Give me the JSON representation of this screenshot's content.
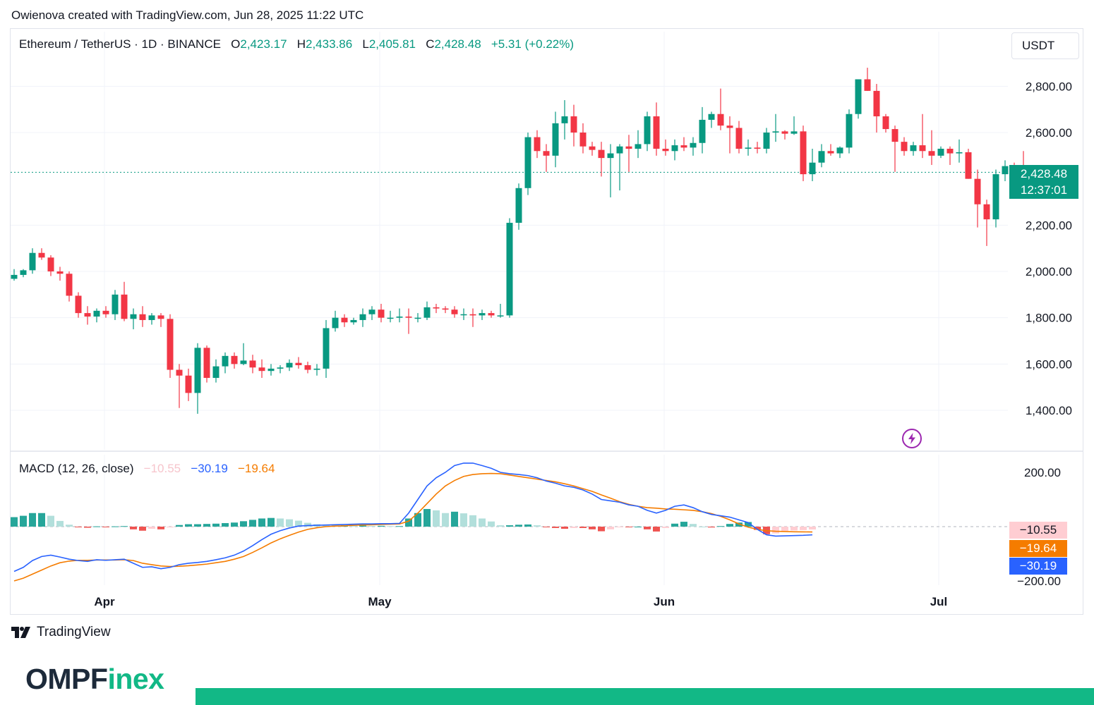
{
  "header": {
    "credit": "Owienova created with TradingView.com, Jun 28, 2025 11:22 UTC"
  },
  "legend": {
    "symbol": "Ethereum / TetherUS · 1D · BINANCE",
    "o_label": "O",
    "o_value": "2,423.17",
    "h_label": "H",
    "h_value": "2,433.86",
    "l_label": "L",
    "l_value": "2,405.81",
    "c_label": "C",
    "c_value": "2,428.48",
    "change": "+5.31 (+0.22%)"
  },
  "currency": "USDT",
  "last_price": {
    "price": "2,428.48",
    "countdown": "12:37:01"
  },
  "macd_legend": {
    "label": "MACD (12, 26, close)",
    "histogram": "−10.55",
    "macd": "−30.19",
    "signal": "−19.64"
  },
  "macd_tags": {
    "histogram": "−10.55",
    "signal": "−19.64",
    "macd": "−30.19"
  },
  "footer": {
    "brand": "TradingView",
    "logo_main": "OMPF",
    "logo_accent": "inex"
  },
  "colors": {
    "up": "#089981",
    "down": "#f23645",
    "macd": "#2962ff",
    "signal": "#f57c00",
    "hist_pos": "#26a69a",
    "hist_neg": "#ef5350",
    "brand": "#12b886"
  },
  "chart_data": [
    {
      "type": "candlestick",
      "title": "Ethereum / TetherUS · 1D · BINANCE",
      "ylim": [
        1250,
        2900
      ],
      "y_ticks": [
        "2,800.00",
        "2,600.00",
        "2,200.00",
        "2,000.00",
        "1,800.00",
        "1,600.00",
        "1,400.00"
      ],
      "x_ticks": [
        "Apr",
        "May",
        "Jun",
        "Jul"
      ],
      "candles": [
        {
          "o": 1968,
          "h": 2010,
          "l": 1960,
          "c": 1985
        },
        {
          "o": 1985,
          "h": 2010,
          "l": 1975,
          "c": 2005
        },
        {
          "o": 2005,
          "h": 2100,
          "l": 1990,
          "c": 2080
        },
        {
          "o": 2080,
          "h": 2100,
          "l": 2050,
          "c": 2060
        },
        {
          "o": 2060,
          "h": 2070,
          "l": 1980,
          "c": 2000
        },
        {
          "o": 2000,
          "h": 2020,
          "l": 1960,
          "c": 1990
        },
        {
          "o": 1990,
          "h": 2000,
          "l": 1870,
          "c": 1895
        },
        {
          "o": 1895,
          "h": 1910,
          "l": 1800,
          "c": 1820
        },
        {
          "o": 1820,
          "h": 1850,
          "l": 1770,
          "c": 1805
        },
        {
          "o": 1805,
          "h": 1840,
          "l": 1780,
          "c": 1830
        },
        {
          "o": 1830,
          "h": 1850,
          "l": 1800,
          "c": 1815
        },
        {
          "o": 1815,
          "h": 1920,
          "l": 1790,
          "c": 1900
        },
        {
          "o": 1900,
          "h": 1955,
          "l": 1785,
          "c": 1795
        },
        {
          "o": 1795,
          "h": 1840,
          "l": 1750,
          "c": 1815
        },
        {
          "o": 1815,
          "h": 1850,
          "l": 1760,
          "c": 1790
        },
        {
          "o": 1790,
          "h": 1820,
          "l": 1770,
          "c": 1810
        },
        {
          "o": 1810,
          "h": 1820,
          "l": 1760,
          "c": 1795
        },
        {
          "o": 1795,
          "h": 1815,
          "l": 1540,
          "c": 1575
        },
        {
          "o": 1575,
          "h": 1600,
          "l": 1410,
          "c": 1550
        },
        {
          "o": 1550,
          "h": 1580,
          "l": 1440,
          "c": 1475
        },
        {
          "o": 1475,
          "h": 1690,
          "l": 1385,
          "c": 1670
        },
        {
          "o": 1670,
          "h": 1680,
          "l": 1520,
          "c": 1540
        },
        {
          "o": 1540,
          "h": 1620,
          "l": 1520,
          "c": 1590
        },
        {
          "o": 1590,
          "h": 1650,
          "l": 1560,
          "c": 1635
        },
        {
          "o": 1635,
          "h": 1650,
          "l": 1580,
          "c": 1600
        },
        {
          "o": 1600,
          "h": 1690,
          "l": 1595,
          "c": 1615
        },
        {
          "o": 1615,
          "h": 1640,
          "l": 1560,
          "c": 1585
        },
        {
          "o": 1585,
          "h": 1620,
          "l": 1540,
          "c": 1570
        },
        {
          "o": 1570,
          "h": 1600,
          "l": 1550,
          "c": 1580
        },
        {
          "o": 1580,
          "h": 1595,
          "l": 1560,
          "c": 1585
        },
        {
          "o": 1585,
          "h": 1620,
          "l": 1570,
          "c": 1605
        },
        {
          "o": 1605,
          "h": 1630,
          "l": 1580,
          "c": 1595
        },
        {
          "o": 1595,
          "h": 1610,
          "l": 1560,
          "c": 1575
        },
        {
          "o": 1575,
          "h": 1600,
          "l": 1550,
          "c": 1580
        },
        {
          "o": 1580,
          "h": 1790,
          "l": 1540,
          "c": 1755
        },
        {
          "o": 1755,
          "h": 1830,
          "l": 1740,
          "c": 1800
        },
        {
          "o": 1800,
          "h": 1815,
          "l": 1760,
          "c": 1780
        },
        {
          "o": 1780,
          "h": 1800,
          "l": 1770,
          "c": 1790
        },
        {
          "o": 1790,
          "h": 1840,
          "l": 1760,
          "c": 1815
        },
        {
          "o": 1815,
          "h": 1850,
          "l": 1790,
          "c": 1835
        },
        {
          "o": 1835,
          "h": 1860,
          "l": 1780,
          "c": 1800
        },
        {
          "o": 1800,
          "h": 1830,
          "l": 1780,
          "c": 1800
        },
        {
          "o": 1800,
          "h": 1840,
          "l": 1780,
          "c": 1805
        },
        {
          "o": 1805,
          "h": 1840,
          "l": 1730,
          "c": 1800
        },
        {
          "o": 1800,
          "h": 1820,
          "l": 1780,
          "c": 1800
        },
        {
          "o": 1800,
          "h": 1870,
          "l": 1790,
          "c": 1845
        },
        {
          "o": 1845,
          "h": 1860,
          "l": 1820,
          "c": 1840
        },
        {
          "o": 1840,
          "h": 1850,
          "l": 1820,
          "c": 1835
        },
        {
          "o": 1835,
          "h": 1850,
          "l": 1800,
          "c": 1815
        },
        {
          "o": 1815,
          "h": 1840,
          "l": 1790,
          "c": 1815
        },
        {
          "o": 1815,
          "h": 1840,
          "l": 1760,
          "c": 1810
        },
        {
          "o": 1810,
          "h": 1835,
          "l": 1790,
          "c": 1820
        },
        {
          "o": 1820,
          "h": 1830,
          "l": 1800,
          "c": 1810
        },
        {
          "o": 1810,
          "h": 1860,
          "l": 1800,
          "c": 1810
        },
        {
          "o": 1810,
          "h": 2230,
          "l": 1800,
          "c": 2210
        },
        {
          "o": 2210,
          "h": 2380,
          "l": 2180,
          "c": 2360
        },
        {
          "o": 2360,
          "h": 2600,
          "l": 2330,
          "c": 2580
        },
        {
          "o": 2580,
          "h": 2610,
          "l": 2490,
          "c": 2520
        },
        {
          "o": 2520,
          "h": 2550,
          "l": 2430,
          "c": 2500
        },
        {
          "o": 2500,
          "h": 2690,
          "l": 2450,
          "c": 2640
        },
        {
          "o": 2640,
          "h": 2740,
          "l": 2570,
          "c": 2670
        },
        {
          "o": 2670,
          "h": 2720,
          "l": 2540,
          "c": 2600
        },
        {
          "o": 2600,
          "h": 2640,
          "l": 2510,
          "c": 2540
        },
        {
          "o": 2540,
          "h": 2560,
          "l": 2500,
          "c": 2525
        },
        {
          "o": 2525,
          "h": 2560,
          "l": 2410,
          "c": 2490
        },
        {
          "o": 2490,
          "h": 2550,
          "l": 2320,
          "c": 2510
        },
        {
          "o": 2510,
          "h": 2550,
          "l": 2350,
          "c": 2540
        },
        {
          "o": 2540,
          "h": 2590,
          "l": 2430,
          "c": 2530
        },
        {
          "o": 2530,
          "h": 2610,
          "l": 2490,
          "c": 2550
        },
        {
          "o": 2550,
          "h": 2690,
          "l": 2520,
          "c": 2670
        },
        {
          "o": 2670,
          "h": 2730,
          "l": 2500,
          "c": 2530
        },
        {
          "o": 2530,
          "h": 2570,
          "l": 2500,
          "c": 2520
        },
        {
          "o": 2520,
          "h": 2570,
          "l": 2480,
          "c": 2545
        },
        {
          "o": 2545,
          "h": 2580,
          "l": 2520,
          "c": 2535
        },
        {
          "o": 2535,
          "h": 2580,
          "l": 2500,
          "c": 2555
        },
        {
          "o": 2555,
          "h": 2710,
          "l": 2510,
          "c": 2655
        },
        {
          "o": 2655,
          "h": 2690,
          "l": 2620,
          "c": 2680
        },
        {
          "o": 2680,
          "h": 2790,
          "l": 2610,
          "c": 2630
        },
        {
          "o": 2630,
          "h": 2670,
          "l": 2510,
          "c": 2620
        },
        {
          "o": 2620,
          "h": 2650,
          "l": 2510,
          "c": 2530
        },
        {
          "o": 2530,
          "h": 2570,
          "l": 2500,
          "c": 2535
        },
        {
          "o": 2535,
          "h": 2560,
          "l": 2510,
          "c": 2530
        },
        {
          "o": 2530,
          "h": 2620,
          "l": 2510,
          "c": 2600
        },
        {
          "o": 2600,
          "h": 2680,
          "l": 2560,
          "c": 2605
        },
        {
          "o": 2605,
          "h": 2610,
          "l": 2570,
          "c": 2595
        },
        {
          "o": 2595,
          "h": 2670,
          "l": 2590,
          "c": 2605
        },
        {
          "o": 2605,
          "h": 2630,
          "l": 2390,
          "c": 2420
        },
        {
          "o": 2420,
          "h": 2530,
          "l": 2390,
          "c": 2470
        },
        {
          "o": 2470,
          "h": 2550,
          "l": 2450,
          "c": 2520
        },
        {
          "o": 2520,
          "h": 2550,
          "l": 2500,
          "c": 2510
        },
        {
          "o": 2510,
          "h": 2540,
          "l": 2490,
          "c": 2535
        },
        {
          "o": 2535,
          "h": 2700,
          "l": 2510,
          "c": 2680
        },
        {
          "o": 2680,
          "h": 2820,
          "l": 2660,
          "c": 2830
        },
        {
          "o": 2830,
          "h": 2880,
          "l": 2780,
          "c": 2780
        },
        {
          "o": 2780,
          "h": 2810,
          "l": 2600,
          "c": 2670
        },
        {
          "o": 2670,
          "h": 2680,
          "l": 2600,
          "c": 2615
        },
        {
          "o": 2615,
          "h": 2630,
          "l": 2430,
          "c": 2560
        },
        {
          "o": 2560,
          "h": 2580,
          "l": 2500,
          "c": 2520
        },
        {
          "o": 2520,
          "h": 2560,
          "l": 2500,
          "c": 2545
        },
        {
          "o": 2545,
          "h": 2680,
          "l": 2490,
          "c": 2520
        },
        {
          "o": 2520,
          "h": 2610,
          "l": 2460,
          "c": 2500
        },
        {
          "o": 2500,
          "h": 2540,
          "l": 2490,
          "c": 2530
        },
        {
          "o": 2530,
          "h": 2540,
          "l": 2460,
          "c": 2510
        },
        {
          "o": 2510,
          "h": 2570,
          "l": 2470,
          "c": 2515
        },
        {
          "o": 2515,
          "h": 2530,
          "l": 2400,
          "c": 2400
        },
        {
          "o": 2400,
          "h": 2440,
          "l": 2190,
          "c": 2290
        },
        {
          "o": 2290,
          "h": 2310,
          "l": 2110,
          "c": 2225
        },
        {
          "o": 2225,
          "h": 2440,
          "l": 2190,
          "c": 2420
        },
        {
          "o": 2420,
          "h": 2480,
          "l": 2390,
          "c": 2455
        },
        {
          "o": 2455,
          "h": 2470,
          "l": 2400,
          "c": 2420
        },
        {
          "o": 2420,
          "h": 2520,
          "l": 2400,
          "c": 2418
        },
        {
          "o": 2418,
          "h": 2460,
          "l": 2390,
          "c": 2423
        },
        {
          "o": 2423.17,
          "h": 2433.86,
          "l": 2405.81,
          "c": 2428.48
        }
      ],
      "last_price": 2428.48
    },
    {
      "type": "line",
      "title": "MACD (12, 26, close)",
      "ylim": [
        -250,
        240
      ],
      "y_ticks": [
        "200.00",
        "−200.00"
      ],
      "series": [
        {
          "name": "MACD",
          "values": [
            -165,
            -150,
            -125,
            -110,
            -105,
            -112,
            -120,
            -125,
            -128,
            -122,
            -124,
            -122,
            -120,
            -135,
            -150,
            -148,
            -155,
            -150,
            -140,
            -135,
            -132,
            -128,
            -122,
            -115,
            -105,
            -90,
            -70,
            -48,
            -28,
            -15,
            -5,
            2,
            4,
            5,
            6,
            7,
            8,
            9,
            10,
            10,
            11,
            11,
            12,
            50,
            100,
            150,
            180,
            200,
            225,
            234,
            234,
            225,
            215,
            200,
            195,
            192,
            188,
            180,
            168,
            160,
            150,
            145,
            135,
            120,
            100,
            95,
            90,
            80,
            75,
            60,
            50,
            60,
            75,
            80,
            70,
            55,
            45,
            40,
            35,
            25,
            15,
            -10,
            -30,
            -35,
            -34,
            -33,
            -32,
            -30.19
          ]
        },
        {
          "name": "Signal",
          "values": [
            -200,
            -190,
            -175,
            -160,
            -145,
            -133,
            -127,
            -124,
            -124,
            -123,
            -123,
            -123,
            -122,
            -125,
            -135,
            -140,
            -145,
            -147,
            -146,
            -144,
            -141,
            -138,
            -133,
            -128,
            -120,
            -110,
            -95,
            -78,
            -60,
            -45,
            -32,
            -20,
            -10,
            -4,
            0,
            2,
            3,
            5,
            6,
            7,
            8,
            9,
            10,
            20,
            50,
            85,
            120,
            150,
            170,
            185,
            192,
            195,
            196,
            195,
            190,
            185,
            180,
            175,
            170,
            165,
            158,
            150,
            140,
            130,
            117,
            105,
            92,
            82,
            75,
            70,
            68,
            65,
            64,
            62,
            60,
            55,
            48,
            38,
            25,
            10,
            -2,
            -10,
            -15,
            -17,
            -18,
            -19,
            -19.3,
            -19.64
          ]
        },
        {
          "name": "Histogram",
          "values": [
            35,
            40,
            50,
            50,
            40,
            21,
            7,
            -1,
            -4,
            1,
            -1,
            1,
            2,
            -10,
            -15,
            -8,
            -10,
            -3,
            6,
            9,
            9,
            10,
            11,
            13,
            15,
            20,
            25,
            30,
            32,
            30,
            27,
            22,
            14,
            9,
            6,
            5,
            5,
            4,
            4,
            3,
            3,
            2,
            2,
            30,
            50,
            65,
            60,
            50,
            55,
            49,
            42,
            30,
            19,
            5,
            5,
            7,
            8,
            5,
            -2,
            -5,
            -8,
            -5,
            -5,
            -10,
            -17,
            -10,
            -2,
            -2,
            0,
            -10,
            -18,
            -5,
            11,
            18,
            10,
            0,
            -3,
            2,
            10,
            15,
            17,
            -12,
            -28,
            -25,
            -16,
            -14,
            -12.7,
            -10.55
          ]
        }
      ]
    }
  ]
}
